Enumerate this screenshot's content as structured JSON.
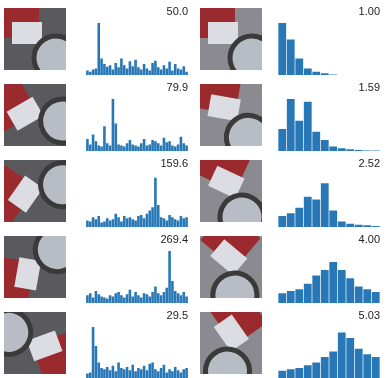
{
  "chart_data": [
    {
      "type": "bar",
      "title": "50.0",
      "categories": [
        null,
        null,
        null,
        null,
        null,
        null,
        null,
        null,
        null,
        null,
        null,
        null,
        null,
        null,
        null,
        null,
        null,
        null,
        null,
        null,
        null,
        null,
        null,
        null,
        null,
        null,
        null,
        null,
        null,
        null,
        null,
        null,
        null,
        null,
        null,
        null
      ],
      "values": [
        8,
        6,
        10,
        12,
        95,
        30,
        20,
        15,
        18,
        10,
        22,
        14,
        30,
        18,
        12,
        25,
        16,
        28,
        14,
        10,
        20,
        12,
        8,
        22,
        26,
        14,
        10,
        18,
        12,
        24,
        8,
        20,
        12,
        10,
        16,
        6
      ],
      "color": "#2878b8",
      "ylim": [
        0,
        100
      ],
      "tick_labels": false,
      "grid": false
    },
    {
      "type": "bar",
      "title": "1.00",
      "categories": [
        null,
        null,
        null,
        null,
        null,
        null,
        null,
        null,
        null,
        null,
        null,
        null
      ],
      "values": [
        95,
        65,
        30,
        12,
        6,
        3,
        1,
        0,
        0,
        0,
        0,
        0
      ],
      "color": "#2878b8",
      "ylim": [
        0,
        100
      ],
      "tick_labels": false,
      "grid": false
    },
    {
      "type": "bar",
      "title": "79.9",
      "categories": [
        null,
        null,
        null,
        null,
        null,
        null,
        null,
        null,
        null,
        null,
        null,
        null,
        null,
        null,
        null,
        null,
        null,
        null,
        null,
        null,
        null,
        null,
        null,
        null,
        null,
        null,
        null,
        null,
        null,
        null,
        null,
        null,
        null,
        null,
        null,
        null
      ],
      "values": [
        22,
        12,
        30,
        18,
        10,
        8,
        45,
        14,
        10,
        95,
        50,
        12,
        10,
        8,
        14,
        20,
        12,
        10,
        8,
        14,
        22,
        10,
        12,
        20,
        18,
        14,
        10,
        24,
        16,
        18,
        10,
        8,
        12,
        26,
        14,
        10
      ],
      "color": "#2878b8",
      "ylim": [
        0,
        100
      ],
      "tick_labels": false,
      "grid": false
    },
    {
      "type": "bar",
      "title": "1.59",
      "categories": [
        null,
        null,
        null,
        null,
        null,
        null,
        null,
        null,
        null,
        null,
        null,
        null
      ],
      "values": [
        40,
        95,
        55,
        90,
        35,
        20,
        8,
        5,
        3,
        2,
        1,
        1
      ],
      "color": "#2878b8",
      "ylim": [
        0,
        100
      ],
      "tick_labels": false,
      "grid": false
    },
    {
      "type": "bar",
      "title": "159.6",
      "categories": [
        null,
        null,
        null,
        null,
        null,
        null,
        null,
        null,
        null,
        null,
        null,
        null,
        null,
        null,
        null,
        null,
        null,
        null,
        null,
        null,
        null,
        null,
        null,
        null,
        null,
        null,
        null,
        null,
        null,
        null,
        null,
        null,
        null,
        null,
        null,
        null
      ],
      "values": [
        12,
        10,
        18,
        14,
        20,
        8,
        10,
        16,
        12,
        14,
        24,
        18,
        10,
        20,
        16,
        18,
        14,
        12,
        20,
        22,
        16,
        24,
        30,
        36,
        90,
        40,
        18,
        16,
        12,
        22,
        18,
        14,
        12,
        20,
        16,
        18
      ],
      "color": "#2878b8",
      "ylim": [
        0,
        100
      ],
      "tick_labels": false,
      "grid": false
    },
    {
      "type": "bar",
      "title": "2.52",
      "categories": [
        null,
        null,
        null,
        null,
        null,
        null,
        null,
        null,
        null,
        null,
        null,
        null
      ],
      "values": [
        20,
        25,
        35,
        55,
        50,
        80,
        30,
        10,
        6,
        4,
        3,
        2
      ],
      "color": "#2878b8",
      "ylim": [
        0,
        100
      ],
      "tick_labels": false,
      "grid": false
    },
    {
      "type": "bar",
      "title": "269.4",
      "categories": [
        null,
        null,
        null,
        null,
        null,
        null,
        null,
        null,
        null,
        null,
        null,
        null,
        null,
        null,
        null,
        null,
        null,
        null,
        null,
        null,
        null,
        null,
        null,
        null,
        null,
        null,
        null,
        null,
        null,
        null,
        null,
        null,
        null,
        null,
        null,
        null
      ],
      "values": [
        14,
        18,
        10,
        22,
        16,
        12,
        10,
        8,
        14,
        12,
        18,
        20,
        14,
        10,
        16,
        24,
        12,
        20,
        14,
        10,
        18,
        16,
        12,
        20,
        30,
        18,
        14,
        20,
        28,
        95,
        40,
        22,
        18,
        14,
        20,
        12
      ],
      "color": "#2878b8",
      "ylim": [
        0,
        100
      ],
      "tick_labels": false,
      "grid": false
    },
    {
      "type": "bar",
      "title": "4.00",
      "categories": [
        null,
        null,
        null,
        null,
        null,
        null,
        null,
        null,
        null,
        null,
        null,
        null
      ],
      "values": [
        18,
        22,
        25,
        35,
        50,
        60,
        75,
        60,
        45,
        30,
        25,
        20
      ],
      "color": "#2878b8",
      "ylim": [
        0,
        100
      ],
      "tick_labels": false,
      "grid": false
    },
    {
      "type": "bar",
      "title": "29.5",
      "categories": [
        null,
        null,
        null,
        null,
        null,
        null,
        null,
        null,
        null,
        null,
        null,
        null,
        null,
        null,
        null,
        null,
        null,
        null,
        null,
        null,
        null,
        null,
        null,
        null,
        null,
        null,
        null,
        null,
        null,
        null,
        null,
        null,
        null,
        null,
        null,
        null
      ],
      "values": [
        10,
        12,
        95,
        60,
        30,
        20,
        18,
        22,
        16,
        24,
        14,
        30,
        20,
        18,
        22,
        16,
        26,
        14,
        20,
        18,
        24,
        16,
        28,
        30,
        18,
        14,
        20,
        26,
        12,
        18,
        14,
        22,
        16,
        12,
        18,
        20
      ],
      "color": "#2878b8",
      "ylim": [
        0,
        100
      ],
      "tick_labels": false,
      "grid": false
    },
    {
      "type": "bar",
      "title": "5.03",
      "categories": [
        null,
        null,
        null,
        null,
        null,
        null,
        null,
        null,
        null,
        null,
        null,
        null
      ],
      "values": [
        15,
        18,
        20,
        25,
        30,
        40,
        50,
        85,
        75,
        55,
        45,
        40
      ],
      "color": "#2878b8",
      "ylim": [
        0,
        100
      ],
      "tick_labels": false,
      "grid": false
    }
  ]
}
